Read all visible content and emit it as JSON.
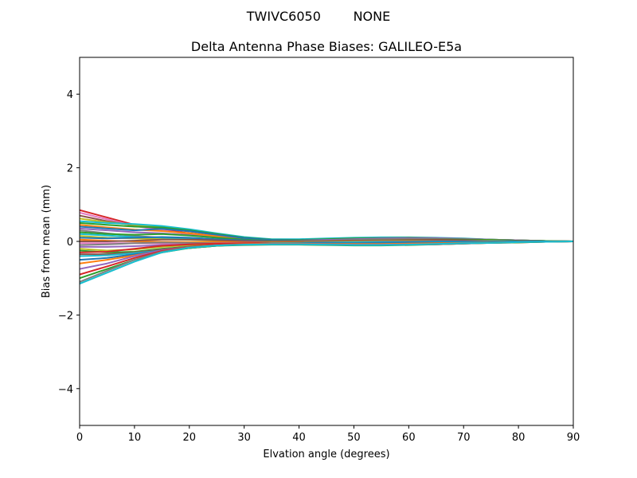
{
  "suptitle": "TWIVC6050        NONE",
  "chart_data": {
    "type": "line",
    "title": "Delta Antenna Phase Biases: GALILEO-E5a",
    "xlabel": "Elvation angle (degrees)",
    "ylabel": "Bias from mean (mm)",
    "xlim": [
      0,
      90
    ],
    "ylim": [
      -5,
      5
    ],
    "xticks": [
      0,
      10,
      20,
      30,
      40,
      50,
      60,
      70,
      80,
      90
    ],
    "yticks": [
      -4,
      -2,
      0,
      2,
      4
    ],
    "xtick_labels": [
      "0",
      "10",
      "20",
      "30",
      "40",
      "50",
      "60",
      "70",
      "80",
      "90"
    ],
    "ytick_labels": [
      "−4",
      "−2",
      "0",
      "2",
      "4"
    ],
    "grid": false,
    "legend": "none",
    "x": [
      0,
      5,
      10,
      15,
      20,
      25,
      30,
      35,
      40,
      45,
      50,
      55,
      60,
      65,
      70,
      75,
      80,
      85,
      90
    ],
    "series": [
      {
        "values": [
          0.85,
          0.65,
          0.45,
          0.32,
          0.22,
          0.14,
          0.07,
          0.03,
          0.01,
          -0.01,
          -0.02,
          -0.02,
          -0.02,
          -0.01,
          -0.01,
          0.0,
          0.0,
          0.0,
          0.0
        ],
        "color": "#d62728"
      },
      {
        "values": [
          0.78,
          0.6,
          0.42,
          0.3,
          0.2,
          0.13,
          0.07,
          0.04,
          0.02,
          0.0,
          -0.01,
          -0.01,
          -0.01,
          -0.01,
          0.0,
          0.0,
          0.0,
          0.0,
          0.0
        ],
        "color": "#e377c2"
      },
      {
        "values": [
          0.7,
          0.55,
          0.43,
          0.35,
          0.27,
          0.18,
          0.1,
          0.05,
          0.03,
          0.02,
          0.02,
          0.03,
          0.04,
          0.05,
          0.05,
          0.04,
          0.03,
          0.01,
          0.0
        ],
        "color": "#8c564b"
      },
      {
        "values": [
          0.62,
          0.52,
          0.45,
          0.4,
          0.32,
          0.2,
          0.1,
          0.05,
          0.05,
          0.07,
          0.09,
          0.1,
          0.1,
          0.09,
          0.07,
          0.05,
          0.03,
          0.01,
          0.0
        ],
        "color": "#bcbd22"
      },
      {
        "values": [
          0.55,
          0.5,
          0.47,
          0.42,
          0.33,
          0.22,
          0.12,
          0.06,
          0.06,
          0.08,
          0.1,
          0.11,
          0.11,
          0.1,
          0.08,
          0.05,
          0.03,
          0.01,
          0.0
        ],
        "color": "#17becf"
      },
      {
        "values": [
          0.5,
          0.45,
          0.4,
          0.38,
          0.3,
          0.2,
          0.1,
          0.05,
          0.04,
          0.06,
          0.08,
          0.09,
          0.1,
          0.09,
          0.07,
          0.05,
          0.03,
          0.01,
          0.0
        ],
        "color": "#2ca02c"
      },
      {
        "values": [
          0.45,
          0.38,
          0.32,
          0.28,
          0.22,
          0.14,
          0.07,
          0.03,
          0.02,
          0.03,
          0.04,
          0.05,
          0.06,
          0.06,
          0.05,
          0.04,
          0.02,
          0.01,
          0.0
        ],
        "color": "#ff7f0e"
      },
      {
        "values": [
          0.4,
          0.35,
          0.3,
          0.34,
          0.28,
          0.18,
          0.09,
          0.04,
          0.03,
          0.04,
          0.05,
          0.06,
          0.07,
          0.07,
          0.06,
          0.04,
          0.02,
          0.01,
          0.0
        ],
        "color": "#1f77b4"
      },
      {
        "values": [
          0.35,
          0.3,
          0.25,
          0.22,
          0.17,
          0.1,
          0.05,
          0.02,
          0.02,
          0.04,
          0.06,
          0.08,
          0.09,
          0.09,
          0.07,
          0.05,
          0.03,
          0.01,
          0.0
        ],
        "color": "#9467bd"
      },
      {
        "values": [
          0.3,
          0.22,
          0.15,
          0.1,
          0.06,
          0.03,
          0.01,
          0.0,
          0.0,
          0.02,
          0.04,
          0.06,
          0.07,
          0.07,
          0.06,
          0.04,
          0.02,
          0.01,
          0.0
        ],
        "color": "#7f7f7f"
      },
      {
        "values": [
          0.25,
          0.2,
          0.18,
          0.2,
          0.16,
          0.1,
          0.05,
          0.02,
          0.01,
          0.01,
          0.02,
          0.03,
          0.04,
          0.05,
          0.05,
          0.04,
          0.02,
          0.01,
          0.0
        ],
        "color": "#2ca02c"
      },
      {
        "values": [
          0.2,
          0.16,
          0.12,
          0.1,
          0.08,
          0.05,
          0.02,
          0.0,
          -0.01,
          -0.02,
          -0.02,
          -0.01,
          0.0,
          0.01,
          0.01,
          0.01,
          0.0,
          0.0,
          0.0
        ],
        "color": "#17becf"
      },
      {
        "values": [
          0.15,
          0.1,
          0.08,
          0.06,
          0.04,
          0.02,
          0.0,
          -0.02,
          -0.03,
          -0.04,
          -0.04,
          -0.03,
          -0.02,
          -0.01,
          0.0,
          0.0,
          0.0,
          0.0,
          0.0
        ],
        "color": "#bcbd22"
      },
      {
        "values": [
          0.1,
          0.08,
          0.1,
          0.12,
          0.1,
          0.06,
          0.03,
          0.01,
          0.0,
          0.0,
          0.01,
          0.02,
          0.03,
          0.03,
          0.03,
          0.02,
          0.01,
          0.0,
          0.0
        ],
        "color": "#1f77b4"
      },
      {
        "values": [
          0.05,
          0.02,
          0.0,
          -0.01,
          -0.02,
          -0.02,
          -0.02,
          -0.02,
          -0.02,
          -0.03,
          -0.03,
          -0.03,
          -0.02,
          -0.01,
          -0.01,
          0.0,
          0.0,
          0.0,
          0.0
        ],
        "color": "#ff7f0e"
      },
      {
        "values": [
          0.0,
          0.0,
          0.02,
          0.05,
          0.05,
          0.03,
          0.01,
          0.0,
          0.0,
          0.01,
          0.02,
          0.03,
          0.04,
          0.04,
          0.03,
          0.02,
          0.01,
          0.0,
          0.0
        ],
        "color": "#8c564b"
      },
      {
        "values": [
          -0.05,
          -0.05,
          -0.05,
          -0.06,
          -0.06,
          -0.05,
          -0.04,
          -0.03,
          -0.03,
          -0.03,
          -0.03,
          -0.02,
          -0.02,
          -0.01,
          -0.01,
          0.0,
          0.0,
          0.0,
          0.0
        ],
        "color": "#e377c2"
      },
      {
        "values": [
          -0.1,
          -0.08,
          -0.05,
          -0.03,
          -0.04,
          -0.05,
          -0.05,
          -0.04,
          -0.03,
          -0.02,
          -0.01,
          0.0,
          0.01,
          0.01,
          0.01,
          0.01,
          0.0,
          0.0,
          0.0
        ],
        "color": "#7f7f7f"
      },
      {
        "values": [
          -0.15,
          -0.15,
          -0.13,
          -0.1,
          -0.08,
          -0.06,
          -0.05,
          -0.04,
          -0.03,
          -0.02,
          -0.02,
          -0.01,
          -0.01,
          0.0,
          0.0,
          0.0,
          0.0,
          0.0,
          0.0
        ],
        "color": "#9467bd"
      },
      {
        "values": [
          -0.2,
          -0.25,
          -0.22,
          -0.15,
          -0.1,
          -0.07,
          -0.05,
          -0.03,
          -0.02,
          -0.01,
          0.0,
          0.01,
          0.01,
          0.01,
          0.01,
          0.01,
          0.0,
          0.0,
          0.0
        ],
        "color": "#bcbd22"
      },
      {
        "values": [
          -0.25,
          -0.3,
          -0.28,
          -0.2,
          -0.14,
          -0.1,
          -0.07,
          -0.05,
          -0.04,
          -0.03,
          -0.02,
          -0.01,
          0.0,
          0.0,
          0.0,
          0.0,
          0.0,
          0.0,
          0.0
        ],
        "color": "#2ca02c"
      },
      {
        "values": [
          -0.3,
          -0.28,
          -0.2,
          -0.12,
          -0.08,
          -0.06,
          -0.05,
          -0.04,
          -0.03,
          -0.02,
          -0.01,
          0.0,
          0.0,
          0.01,
          0.01,
          0.0,
          0.0,
          0.0,
          0.0
        ],
        "color": "#d62728"
      },
      {
        "values": [
          -0.35,
          -0.35,
          -0.3,
          -0.22,
          -0.15,
          -0.1,
          -0.07,
          -0.05,
          -0.04,
          -0.03,
          -0.02,
          -0.02,
          -0.01,
          -0.01,
          0.0,
          0.0,
          0.0,
          0.0,
          0.0
        ],
        "color": "#8c564b"
      },
      {
        "values": [
          -0.4,
          -0.38,
          -0.32,
          -0.25,
          -0.18,
          -0.12,
          -0.08,
          -0.05,
          -0.04,
          -0.03,
          -0.02,
          -0.01,
          -0.01,
          0.0,
          0.0,
          0.0,
          0.0,
          0.0,
          0.0
        ],
        "color": "#17becf"
      },
      {
        "values": [
          -0.5,
          -0.45,
          -0.35,
          -0.25,
          -0.18,
          -0.12,
          -0.08,
          -0.06,
          -0.05,
          -0.05,
          -0.05,
          -0.04,
          -0.03,
          -0.02,
          -0.01,
          -0.01,
          0.0,
          0.0,
          0.0
        ],
        "color": "#1f77b4"
      },
      {
        "values": [
          -0.6,
          -0.5,
          -0.38,
          -0.25,
          -0.16,
          -0.1,
          -0.07,
          -0.06,
          -0.06,
          -0.07,
          -0.07,
          -0.07,
          -0.06,
          -0.05,
          -0.04,
          -0.03,
          -0.02,
          -0.01,
          0.0
        ],
        "color": "#ff7f0e"
      },
      {
        "values": [
          -0.75,
          -0.6,
          -0.4,
          -0.24,
          -0.15,
          -0.1,
          -0.08,
          -0.07,
          -0.07,
          -0.08,
          -0.09,
          -0.09,
          -0.08,
          -0.07,
          -0.05,
          -0.04,
          -0.02,
          -0.01,
          0.0
        ],
        "color": "#9467bd"
      },
      {
        "values": [
          -0.9,
          -0.68,
          -0.45,
          -0.26,
          -0.15,
          -0.1,
          -0.08,
          -0.08,
          -0.08,
          -0.09,
          -0.1,
          -0.1,
          -0.09,
          -0.08,
          -0.06,
          -0.04,
          -0.03,
          -0.01,
          0.0
        ],
        "color": "#d62728"
      },
      {
        "values": [
          -1.0,
          -0.75,
          -0.5,
          -0.3,
          -0.18,
          -0.12,
          -0.1,
          -0.09,
          -0.09,
          -0.1,
          -0.11,
          -0.11,
          -0.1,
          -0.08,
          -0.06,
          -0.04,
          -0.03,
          -0.01,
          0.0
        ],
        "color": "#2ca02c"
      },
      {
        "values": [
          -1.1,
          -0.8,
          -0.5,
          -0.28,
          -0.16,
          -0.11,
          -0.09,
          -0.08,
          -0.08,
          -0.09,
          -0.1,
          -0.1,
          -0.09,
          -0.08,
          -0.06,
          -0.04,
          -0.02,
          -0.01,
          0.0
        ],
        "color": "#7f7f7f"
      },
      {
        "values": [
          -1.15,
          -0.85,
          -0.55,
          -0.3,
          -0.17,
          -0.11,
          -0.09,
          -0.08,
          -0.08,
          -0.09,
          -0.1,
          -0.1,
          -0.09,
          -0.07,
          -0.05,
          -0.04,
          -0.02,
          -0.01,
          0.0
        ],
        "color": "#17becf"
      }
    ]
  }
}
